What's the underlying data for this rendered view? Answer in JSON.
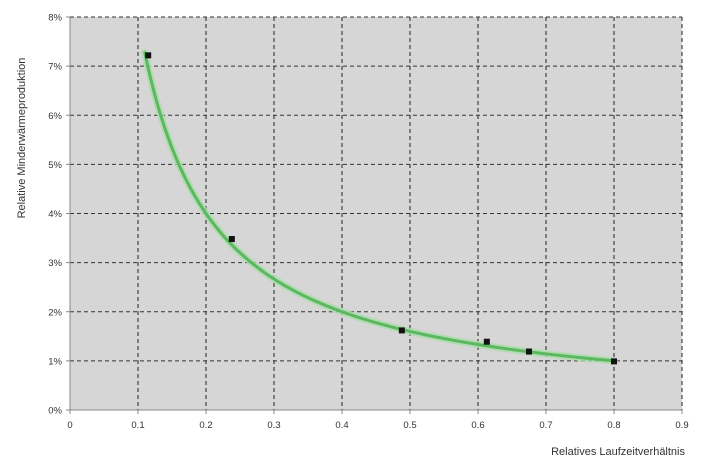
{
  "chart_data": {
    "type": "scatter",
    "xlabel": "Relatives Laufzeitverhältnis",
    "ylabel": "Relative Minderwärmeproduktion",
    "xlim": [
      0,
      0.9
    ],
    "ylim": [
      0,
      0.08
    ],
    "x_ticks": [
      "0",
      "0.1",
      "0.2",
      "0.3",
      "0.4",
      "0.5",
      "0.6",
      "0.7",
      "0.8",
      "0.9"
    ],
    "y_ticks": [
      "0%",
      "1%",
      "2%",
      "3%",
      "4%",
      "5%",
      "6%",
      "7%",
      "8%"
    ],
    "grid": true,
    "series": [
      {
        "kind": "points",
        "color": "#111111",
        "x": [
          0.115,
          0.238,
          0.488,
          0.613,
          0.675,
          0.8
        ],
        "y": [
          0.0722,
          0.0348,
          0.0162,
          0.0139,
          0.0119,
          0.0099
        ]
      },
      {
        "kind": "fit-curve",
        "color": "#5cb860",
        "fit": "y = 0.008 / x",
        "x_range": [
          0.11,
          0.8
        ]
      }
    ],
    "colors": {
      "plot_background": "#d6d6d6",
      "grid": "#333333",
      "axis": "#888888"
    }
  }
}
